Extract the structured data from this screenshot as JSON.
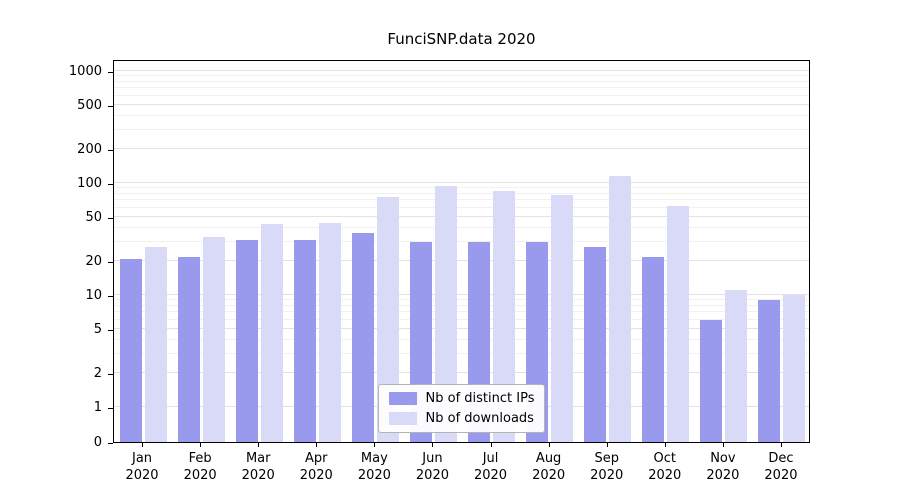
{
  "title": "FunciSNP.data 2020",
  "chart_data": {
    "type": "bar",
    "title": "FunciSNP.data 2020",
    "categories": [
      "Jan 2020",
      "Feb 2020",
      "Mar 2020",
      "Apr 2020",
      "May 2020",
      "Jun 2020",
      "Jul 2020",
      "Aug 2020",
      "Sep 2020",
      "Oct 2020",
      "Nov 2020",
      "Dec 2020"
    ],
    "series": [
      {
        "name": "Nb of distinct IPs",
        "color": "#9999ee",
        "values": [
          21,
          22,
          31,
          31,
          36,
          30,
          30,
          30,
          27,
          22,
          6,
          9
        ]
      },
      {
        "name": "Nb of downloads",
        "color": "#d9d9f8",
        "values": [
          27,
          33,
          43,
          44,
          75,
          95,
          85,
          78,
          115,
          62,
          11,
          10
        ]
      }
    ],
    "y_ticks": [
      0,
      1,
      2,
      5,
      10,
      20,
      50,
      100,
      200,
      500,
      1000
    ],
    "y_scale": "log",
    "ylim": [
      0,
      1000
    ],
    "xlabel": "",
    "ylabel": "",
    "grid": true,
    "legend_position": "bottom-center"
  }
}
